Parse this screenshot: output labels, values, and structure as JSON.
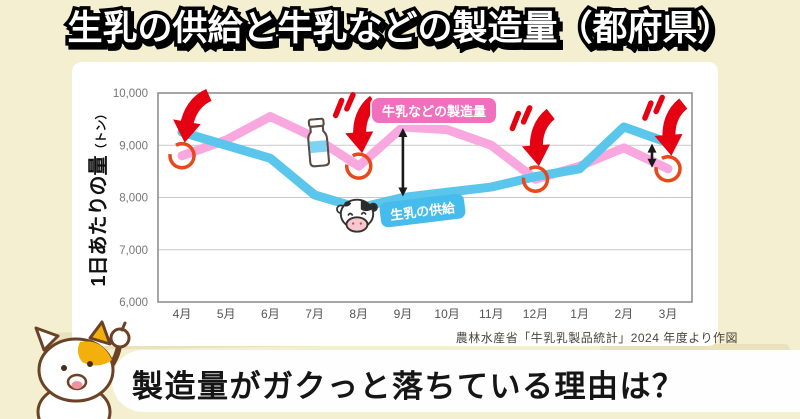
{
  "title": "生乳の供給と牛乳などの製造量（都府県）",
  "chart": {
    "ylabel_main": "1日あたりの量",
    "ylabel_unit": "（トン）",
    "source": "農林水産省「牛乳乳製品統計」2024 年度より作図"
  },
  "chart_data": {
    "type": "line",
    "categories": [
      "4月",
      "5月",
      "6月",
      "7月",
      "8月",
      "9月",
      "10月",
      "11月",
      "12月",
      "1月",
      "2月",
      "3月"
    ],
    "ylabel": "1日あたりの量（トン）",
    "ylim": [
      6000,
      10000
    ],
    "ytick_values": [
      10000,
      9000,
      8000,
      7000,
      6000
    ],
    "ytick_labels": [
      "10,000",
      "9,000",
      "8,000",
      "7,000",
      "6,000"
    ],
    "grid": true,
    "legend_position": "on-chart-labels",
    "series": [
      {
        "name": "牛乳などの製造量",
        "color": "#F8A8DF",
        "values": [
          8800,
          9100,
          9550,
          9150,
          8600,
          9350,
          9300,
          9000,
          8350,
          8600,
          8950,
          8550
        ]
      },
      {
        "name": "生乳の供給",
        "color": "#5BC6EC",
        "values": [
          9250,
          9000,
          8750,
          8050,
          7800,
          8000,
          8100,
          8200,
          8400,
          8550,
          9350,
          9050
        ]
      }
    ],
    "highlighted_months": [
      "4月",
      "8月",
      "12月",
      "3月"
    ],
    "gap_arrow_months": [
      "9月",
      "3月"
    ]
  },
  "badges": {
    "production": "牛乳などの製造量",
    "supply": "生乳の供給"
  },
  "footer": {
    "question": "製造量がガクっと落ちている理由は？"
  },
  "icons": {
    "milk_bottle": "milk-bottle-icon",
    "cow": "cow-icon",
    "cat": "cat-mascot-icon",
    "drop_arrow": "red-drop-arrow-icon",
    "gap_arrow": "black-gap-arrow-icon"
  },
  "colors": {
    "background": "#F5EFD2",
    "panel": "#FFFFFF",
    "production_line": "#F8A8DF",
    "supply_line": "#5BC6EC",
    "highlight_red": "#E50012",
    "marker_ring": "#E8481A",
    "production_badge": "#F170BE",
    "supply_badge": "#45BCEB"
  }
}
